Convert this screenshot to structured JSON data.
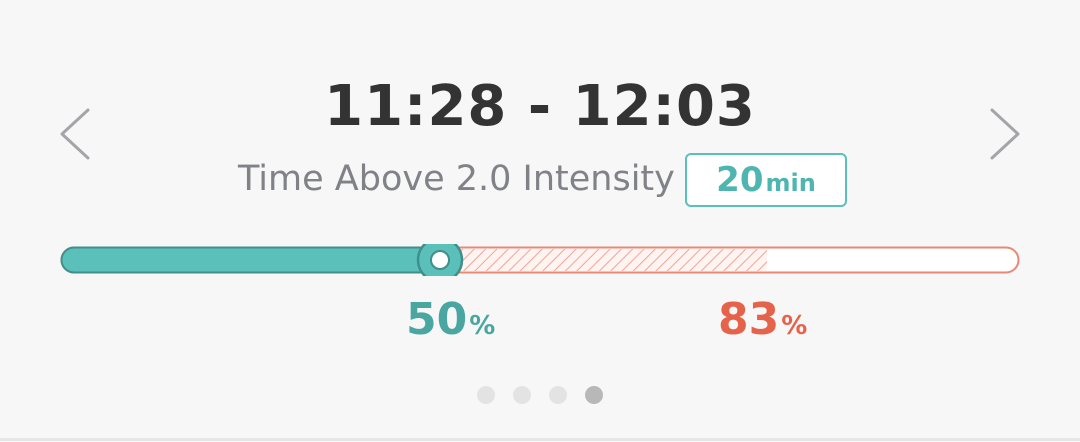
{
  "header": {
    "time_range": "11:28 - 12:03"
  },
  "metric": {
    "label": "Time Above 2.0 Intensity",
    "value": "20",
    "unit": "min"
  },
  "progress": {
    "current_percent": 50,
    "current_label": "50",
    "current_unit": "%",
    "target_percent": 83,
    "target_label": "83",
    "target_unit": "%"
  },
  "pager": {
    "count": 4,
    "active_index": 3
  },
  "colors": {
    "teal": "#5bbfba",
    "teal_dark": "#3f8f8b",
    "coral": "#e88a75",
    "coral_text": "#e5634a",
    "background": "#f7f7f7"
  },
  "icons": {
    "prev": "chevron-left-icon",
    "next": "chevron-right-icon"
  }
}
